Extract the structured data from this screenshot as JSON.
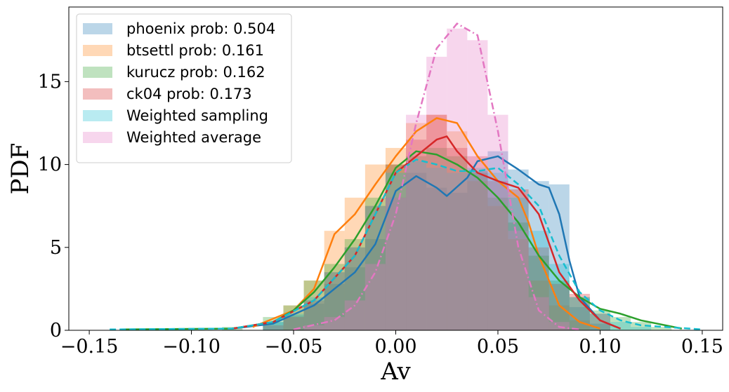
{
  "chart_data": {
    "type": "area",
    "title": "",
    "xlabel": "Av",
    "ylabel": "PDF",
    "xlim": [
      -0.16,
      0.16
    ],
    "ylim": [
      0,
      19.5
    ],
    "xticks": [
      -0.15,
      -0.1,
      -0.05,
      0.0,
      0.05,
      0.1,
      0.15
    ],
    "xtick_labels": [
      "−0.15",
      "−0.10",
      "−0.05",
      "0.00",
      "0.05",
      "0.10",
      "0.15"
    ],
    "yticks": [
      0,
      5,
      10,
      15
    ],
    "ytick_labels": [
      "0",
      "5",
      "10",
      "15"
    ],
    "grid": false,
    "legend_position": "top-left",
    "series": [
      {
        "name": "phoenix prob: 0.504",
        "color": "#1f77b4",
        "line_style": "solid",
        "hist": [
          [
            -0.06,
            0.5
          ],
          [
            -0.05,
            0.9
          ],
          [
            -0.04,
            1.6
          ],
          [
            -0.03,
            2.8
          ],
          [
            -0.02,
            3.8
          ],
          [
            -0.01,
            5.5
          ],
          [
            0.0,
            8.0
          ],
          [
            0.01,
            9.5
          ],
          [
            0.02,
            8.6
          ],
          [
            0.03,
            8.3
          ],
          [
            0.04,
            9.6
          ],
          [
            0.05,
            10.8
          ],
          [
            0.06,
            9.7
          ],
          [
            0.07,
            9.0
          ],
          [
            0.08,
            8.8
          ],
          [
            0.09,
            1.4
          ],
          [
            0.1,
            0.4
          ]
        ],
        "kde": [
          [
            -0.08,
            0.1
          ],
          [
            -0.06,
            0.4
          ],
          [
            -0.04,
            1.5
          ],
          [
            -0.02,
            3.5
          ],
          [
            -0.01,
            5.2
          ],
          [
            0.0,
            8.4
          ],
          [
            0.01,
            9.3
          ],
          [
            0.02,
            8.6
          ],
          [
            0.025,
            8.1
          ],
          [
            0.035,
            9.2
          ],
          [
            0.04,
            10.2
          ],
          [
            0.05,
            10.5
          ],
          [
            0.06,
            9.7
          ],
          [
            0.07,
            8.8
          ],
          [
            0.075,
            8.6
          ],
          [
            0.08,
            7.0
          ],
          [
            0.085,
            4.2
          ],
          [
            0.09,
            2.0
          ],
          [
            0.1,
            0.6
          ],
          [
            0.11,
            0.1
          ]
        ]
      },
      {
        "name": "btsettl prob: 0.161",
        "color": "#ff7f0e",
        "line_style": "solid",
        "hist": [
          [
            -0.05,
            1.5
          ],
          [
            -0.04,
            3.0
          ],
          [
            -0.03,
            6.0
          ],
          [
            -0.02,
            8.0
          ],
          [
            -0.01,
            10.0
          ],
          [
            0.0,
            11.0
          ],
          [
            0.01,
            12.5
          ],
          [
            0.02,
            13.0
          ],
          [
            0.03,
            12.0
          ],
          [
            0.04,
            9.0
          ],
          [
            0.05,
            7.5
          ],
          [
            0.06,
            5.5
          ],
          [
            0.07,
            3.0
          ],
          [
            0.08,
            1.5
          ],
          [
            0.09,
            0.6
          ]
        ],
        "kde": [
          [
            -0.07,
            0.2
          ],
          [
            -0.05,
            1.2
          ],
          [
            -0.04,
            2.5
          ],
          [
            -0.03,
            5.8
          ],
          [
            -0.02,
            7.0
          ],
          [
            -0.01,
            8.8
          ],
          [
            0.0,
            10.5
          ],
          [
            0.01,
            12.0
          ],
          [
            0.02,
            12.8
          ],
          [
            0.03,
            12.5
          ],
          [
            0.04,
            10.5
          ],
          [
            0.05,
            9.0
          ],
          [
            0.06,
            8.0
          ],
          [
            0.065,
            6.5
          ],
          [
            0.07,
            4.5
          ],
          [
            0.075,
            3.0
          ],
          [
            0.08,
            1.5
          ],
          [
            0.09,
            0.5
          ],
          [
            0.1,
            0.1
          ]
        ]
      },
      {
        "name": "kurucz prob: 0.162",
        "color": "#2ca02c",
        "line_style": "solid",
        "hist": [
          [
            -0.08,
            0.2
          ],
          [
            -0.06,
            0.8
          ],
          [
            -0.05,
            1.5
          ],
          [
            -0.04,
            3.0
          ],
          [
            -0.03,
            4.0
          ],
          [
            -0.02,
            5.5
          ],
          [
            -0.01,
            8.0
          ],
          [
            0.0,
            10.0
          ],
          [
            0.01,
            10.5
          ],
          [
            0.02,
            11.0
          ],
          [
            0.03,
            10.5
          ],
          [
            0.04,
            9.5
          ],
          [
            0.05,
            8.0
          ],
          [
            0.06,
            6.5
          ],
          [
            0.07,
            4.5
          ],
          [
            0.08,
            3.0
          ],
          [
            0.09,
            2.0
          ],
          [
            0.1,
            1.2
          ],
          [
            0.11,
            0.8
          ],
          [
            0.12,
            0.5
          ],
          [
            0.13,
            0.2
          ]
        ],
        "kde": [
          [
            -0.135,
            0.05
          ],
          [
            -0.08,
            0.1
          ],
          [
            -0.06,
            0.5
          ],
          [
            -0.05,
            1.2
          ],
          [
            -0.04,
            2.3
          ],
          [
            -0.03,
            3.8
          ],
          [
            -0.02,
            5.5
          ],
          [
            -0.01,
            7.5
          ],
          [
            0.0,
            9.8
          ],
          [
            0.01,
            10.8
          ],
          [
            0.02,
            10.6
          ],
          [
            0.03,
            10.0
          ],
          [
            0.04,
            9.2
          ],
          [
            0.05,
            8.0
          ],
          [
            0.06,
            6.5
          ],
          [
            0.07,
            4.5
          ],
          [
            0.08,
            3.0
          ],
          [
            0.09,
            2.0
          ],
          [
            0.1,
            1.3
          ],
          [
            0.11,
            1.0
          ],
          [
            0.12,
            0.6
          ],
          [
            0.14,
            0.1
          ]
        ]
      },
      {
        "name": "ck04 prob: 0.173",
        "color": "#d62728",
        "line_style": "solid",
        "hist": [
          [
            -0.06,
            0.3
          ],
          [
            -0.05,
            0.8
          ],
          [
            -0.04,
            1.8
          ],
          [
            -0.03,
            3.5
          ],
          [
            -0.02,
            5.0
          ],
          [
            -0.01,
            7.5
          ],
          [
            0.0,
            10.0
          ],
          [
            0.01,
            11.5
          ],
          [
            0.02,
            13.0
          ],
          [
            0.03,
            11.0
          ],
          [
            0.04,
            10.5
          ],
          [
            0.05,
            9.0
          ],
          [
            0.06,
            8.5
          ],
          [
            0.07,
            5.0
          ],
          [
            0.08,
            2.8
          ],
          [
            0.09,
            2.2
          ],
          [
            0.1,
            1.0
          ]
        ],
        "kde": [
          [
            -0.08,
            0.1
          ],
          [
            -0.06,
            0.5
          ],
          [
            -0.04,
            1.8
          ],
          [
            -0.02,
            4.5
          ],
          [
            -0.01,
            7.0
          ],
          [
            0.0,
            9.5
          ],
          [
            0.01,
            10.5
          ],
          [
            0.02,
            11.5
          ],
          [
            0.025,
            11.7
          ],
          [
            0.03,
            10.8
          ],
          [
            0.04,
            9.5
          ],
          [
            0.05,
            9.0
          ],
          [
            0.06,
            8.6
          ],
          [
            0.07,
            7.0
          ],
          [
            0.08,
            3.5
          ],
          [
            0.09,
            1.8
          ],
          [
            0.1,
            0.6
          ],
          [
            0.11,
            0.1
          ]
        ]
      },
      {
        "name": "Weighted sampling",
        "color": "#17becf",
        "line_style": "dashed",
        "hist": [
          [
            -0.06,
            0.5
          ],
          [
            -0.05,
            1.0
          ],
          [
            -0.04,
            2.0
          ],
          [
            -0.03,
            3.5
          ],
          [
            -0.02,
            5.0
          ],
          [
            -0.01,
            7.5
          ],
          [
            0.0,
            9.5
          ],
          [
            0.01,
            10.2
          ],
          [
            0.02,
            9.8
          ],
          [
            0.03,
            9.5
          ],
          [
            0.04,
            9.8
          ],
          [
            0.05,
            9.5
          ],
          [
            0.06,
            8.0
          ],
          [
            0.07,
            6.0
          ],
          [
            0.08,
            4.0
          ],
          [
            0.09,
            2.0
          ],
          [
            0.1,
            1.0
          ],
          [
            0.11,
            0.5
          ],
          [
            0.12,
            0.2
          ]
        ],
        "kde": [
          [
            -0.14,
            0.05
          ],
          [
            -0.08,
            0.1
          ],
          [
            -0.06,
            0.5
          ],
          [
            -0.04,
            1.8
          ],
          [
            -0.02,
            4.5
          ],
          [
            -0.01,
            7.0
          ],
          [
            0.0,
            9.5
          ],
          [
            0.01,
            10.3
          ],
          [
            0.02,
            10.0
          ],
          [
            0.03,
            9.6
          ],
          [
            0.04,
            9.6
          ],
          [
            0.05,
            9.8
          ],
          [
            0.06,
            8.8
          ],
          [
            0.07,
            7.5
          ],
          [
            0.08,
            4.5
          ],
          [
            0.09,
            2.3
          ],
          [
            0.1,
            1.2
          ],
          [
            0.11,
            0.6
          ],
          [
            0.12,
            0.3
          ],
          [
            0.15,
            0.05
          ]
        ]
      },
      {
        "name": "Weighted average",
        "color": "#e377c2",
        "line_style": "dashdot",
        "hist": [
          [
            -0.04,
            0.3
          ],
          [
            -0.03,
            0.8
          ],
          [
            -0.02,
            1.8
          ],
          [
            -0.01,
            4.0
          ],
          [
            0.0,
            8.0
          ],
          [
            0.01,
            13.0
          ],
          [
            0.02,
            16.5
          ],
          [
            0.03,
            18.2
          ],
          [
            0.04,
            17.5
          ],
          [
            0.05,
            13.0
          ],
          [
            0.06,
            6.0
          ],
          [
            0.07,
            2.0
          ],
          [
            0.08,
            0.5
          ]
        ],
        "kde": [
          [
            -0.05,
            0.05
          ],
          [
            -0.03,
            0.6
          ],
          [
            -0.02,
            1.5
          ],
          [
            -0.01,
            3.5
          ],
          [
            0.0,
            7.0
          ],
          [
            0.01,
            12.5
          ],
          [
            0.02,
            17.0
          ],
          [
            0.03,
            18.5
          ],
          [
            0.04,
            17.8
          ],
          [
            0.05,
            12.0
          ],
          [
            0.06,
            5.0
          ],
          [
            0.07,
            1.2
          ],
          [
            0.08,
            0.2
          ],
          [
            0.09,
            0.05
          ]
        ]
      }
    ]
  }
}
